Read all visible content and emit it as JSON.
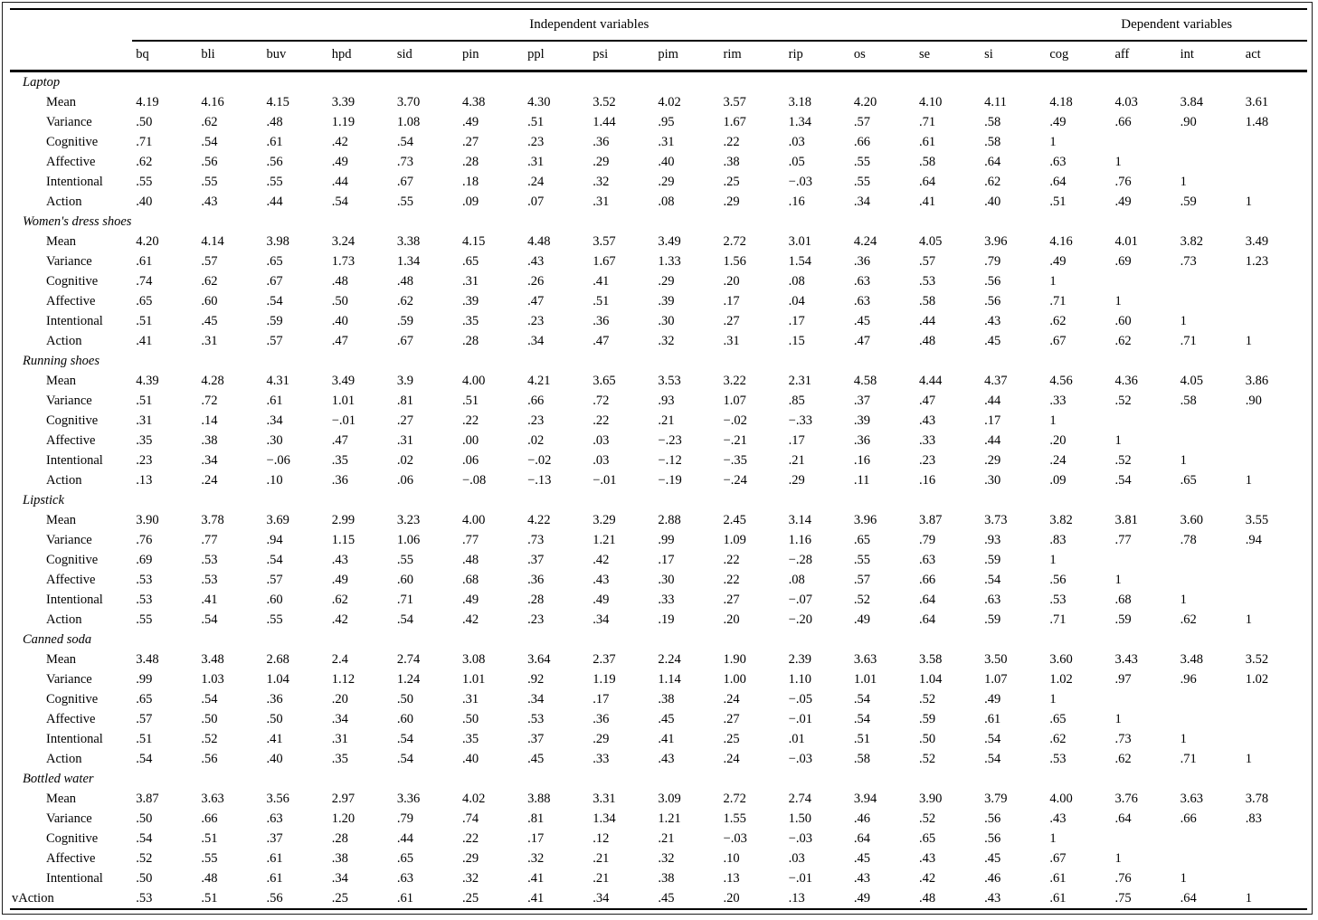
{
  "table": {
    "span_headers": {
      "independent": "Independent variables",
      "dependent": "Dependent variables"
    },
    "columns": [
      "bq",
      "bli",
      "buv",
      "hpd",
      "sid",
      "pin",
      "ppl",
      "psi",
      "pim",
      "rim",
      "rip",
      "os",
      "se",
      "si",
      "cog",
      "aff",
      "int",
      "act"
    ],
    "sections": [
      {
        "label": "Laptop",
        "rows": [
          {
            "label": "Mean",
            "values": [
              "4.19",
              "4.16",
              "4.15",
              "3.39",
              "3.70",
              "4.38",
              "4.30",
              "3.52",
              "4.02",
              "3.57",
              "3.18",
              "4.20",
              "4.10",
              "4.11",
              "4.18",
              "4.03",
              "3.84",
              "3.61"
            ]
          },
          {
            "label": "Variance",
            "values": [
              ".50",
              ".62",
              ".48",
              "1.19",
              "1.08",
              ".49",
              ".51",
              "1.44",
              ".95",
              "1.67",
              "1.34",
              ".57",
              ".71",
              ".58",
              ".49",
              ".66",
              ".90",
              "1.48"
            ]
          },
          {
            "label": "Cognitive",
            "values": [
              ".71",
              ".54",
              ".61",
              ".42",
              ".54",
              ".27",
              ".23",
              ".36",
              ".31",
              ".22",
              ".03",
              ".66",
              ".61",
              ".58",
              "1",
              "",
              "",
              ""
            ]
          },
          {
            "label": "Affective",
            "values": [
              ".62",
              ".56",
              ".56",
              ".49",
              ".73",
              ".28",
              ".31",
              ".29",
              ".40",
              ".38",
              ".05",
              ".55",
              ".58",
              ".64",
              ".63",
              "1",
              "",
              ""
            ]
          },
          {
            "label": "Intentional",
            "values": [
              ".55",
              ".55",
              ".55",
              ".44",
              ".67",
              ".18",
              ".24",
              ".32",
              ".29",
              ".25",
              "−.03",
              ".55",
              ".64",
              ".62",
              ".64",
              ".76",
              "1",
              ""
            ]
          },
          {
            "label": "Action",
            "values": [
              ".40",
              ".43",
              ".44",
              ".54",
              ".55",
              ".09",
              ".07",
              ".31",
              ".08",
              ".29",
              ".16",
              ".34",
              ".41",
              ".40",
              ".51",
              ".49",
              ".59",
              "1"
            ]
          }
        ]
      },
      {
        "label": "Women's dress shoes",
        "rows": [
          {
            "label": "Mean",
            "values": [
              "4.20",
              "4.14",
              "3.98",
              "3.24",
              "3.38",
              "4.15",
              "4.48",
              "3.57",
              "3.49",
              "2.72",
              "3.01",
              "4.24",
              "4.05",
              "3.96",
              "4.16",
              "4.01",
              "3.82",
              "3.49"
            ]
          },
          {
            "label": "Variance",
            "values": [
              ".61",
              ".57",
              ".65",
              "1.73",
              "1.34",
              ".65",
              ".43",
              "1.67",
              "1.33",
              "1.56",
              "1.54",
              ".36",
              ".57",
              ".79",
              ".49",
              ".69",
              ".73",
              "1.23"
            ]
          },
          {
            "label": "Cognitive",
            "values": [
              ".74",
              ".62",
              ".67",
              ".48",
              ".48",
              ".31",
              ".26",
              ".41",
              ".29",
              ".20",
              ".08",
              ".63",
              ".53",
              ".56",
              "1",
              "",
              "",
              ""
            ]
          },
          {
            "label": "Affective",
            "values": [
              ".65",
              ".60",
              ".54",
              ".50",
              ".62",
              ".39",
              ".47",
              ".51",
              ".39",
              ".17",
              ".04",
              ".63",
              ".58",
              ".56",
              ".71",
              "1",
              "",
              ""
            ]
          },
          {
            "label": "Intentional",
            "values": [
              ".51",
              ".45",
              ".59",
              ".40",
              ".59",
              ".35",
              ".23",
              ".36",
              ".30",
              ".27",
              ".17",
              ".45",
              ".44",
              ".43",
              ".62",
              ".60",
              "1",
              ""
            ]
          },
          {
            "label": "Action",
            "values": [
              ".41",
              ".31",
              ".57",
              ".47",
              ".67",
              ".28",
              ".34",
              ".47",
              ".32",
              ".31",
              ".15",
              ".47",
              ".48",
              ".45",
              ".67",
              ".62",
              ".71",
              "1"
            ]
          }
        ]
      },
      {
        "label": "Running shoes",
        "rows": [
          {
            "label": "Mean",
            "values": [
              "4.39",
              "4.28",
              "4.31",
              "3.49",
              "3.9",
              "4.00",
              "4.21",
              "3.65",
              "3.53",
              "3.22",
              "2.31",
              "4.58",
              "4.44",
              "4.37",
              "4.56",
              "4.36",
              "4.05",
              "3.86"
            ]
          },
          {
            "label": "Variance",
            "values": [
              ".51",
              ".72",
              ".61",
              "1.01",
              ".81",
              ".51",
              ".66",
              ".72",
              ".93",
              "1.07",
              ".85",
              ".37",
              ".47",
              ".44",
              ".33",
              ".52",
              ".58",
              ".90"
            ]
          },
          {
            "label": "Cognitive",
            "values": [
              ".31",
              ".14",
              ".34",
              "−.01",
              ".27",
              ".22",
              ".23",
              ".22",
              ".21",
              "−.02",
              "−.33",
              ".39",
              ".43",
              ".17",
              "1",
              "",
              "",
              ""
            ]
          },
          {
            "label": "Affective",
            "values": [
              ".35",
              ".38",
              ".30",
              ".47",
              ".31",
              ".00",
              ".02",
              ".03",
              "−.23",
              "−.21",
              ".17",
              ".36",
              ".33",
              ".44",
              ".20",
              "1",
              "",
              ""
            ]
          },
          {
            "label": "Intentional",
            "values": [
              ".23",
              ".34",
              "−.06",
              ".35",
              ".02",
              ".06",
              "−.02",
              ".03",
              "−.12",
              "−.35",
              ".21",
              ".16",
              ".23",
              ".29",
              ".24",
              ".52",
              "1",
              ""
            ]
          },
          {
            "label": "Action",
            "values": [
              ".13",
              ".24",
              ".10",
              ".36",
              ".06",
              "−.08",
              "−.13",
              "−.01",
              "−.19",
              "−.24",
              ".29",
              ".11",
              ".16",
              ".30",
              ".09",
              ".54",
              ".65",
              "1"
            ]
          }
        ]
      },
      {
        "label": "Lipstick",
        "rows": [
          {
            "label": "Mean",
            "values": [
              "3.90",
              "3.78",
              "3.69",
              "2.99",
              "3.23",
              "4.00",
              "4.22",
              "3.29",
              "2.88",
              "2.45",
              "3.14",
              "3.96",
              "3.87",
              "3.73",
              "3.82",
              "3.81",
              "3.60",
              "3.55"
            ]
          },
          {
            "label": "Variance",
            "values": [
              ".76",
              ".77",
              ".94",
              "1.15",
              "1.06",
              ".77",
              ".73",
              "1.21",
              ".99",
              "1.09",
              "1.16",
              ".65",
              ".79",
              ".93",
              ".83",
              ".77",
              ".78",
              ".94"
            ]
          },
          {
            "label": "Cognitive",
            "values": [
              ".69",
              ".53",
              ".54",
              ".43",
              ".55",
              ".48",
              ".37",
              ".42",
              ".17",
              ".22",
              "−.28",
              ".55",
              ".63",
              ".59",
              "1",
              "",
              "",
              ""
            ]
          },
          {
            "label": "Affective",
            "values": [
              ".53",
              ".53",
              ".57",
              ".49",
              ".60",
              ".68",
              ".36",
              ".43",
              ".30",
              ".22",
              ".08",
              ".57",
              ".66",
              ".54",
              ".56",
              "1",
              "",
              ""
            ]
          },
          {
            "label": "Intentional",
            "values": [
              ".53",
              ".41",
              ".60",
              ".62",
              ".71",
              ".49",
              ".28",
              ".49",
              ".33",
              ".27",
              "−.07",
              ".52",
              ".64",
              ".63",
              ".53",
              ".68",
              "1",
              ""
            ]
          },
          {
            "label": "Action",
            "values": [
              ".55",
              ".54",
              ".55",
              ".42",
              ".54",
              ".42",
              ".23",
              ".34",
              ".19",
              ".20",
              "−.20",
              ".49",
              ".64",
              ".59",
              ".71",
              ".59",
              ".62",
              "1"
            ]
          }
        ]
      },
      {
        "label": "Canned soda",
        "rows": [
          {
            "label": "Mean",
            "values": [
              "3.48",
              "3.48",
              "2.68",
              "2.4",
              "2.74",
              "3.08",
              "3.64",
              "2.37",
              "2.24",
              "1.90",
              "2.39",
              "3.63",
              "3.58",
              "3.50",
              "3.60",
              "3.43",
              "3.48",
              "3.52"
            ]
          },
          {
            "label": "Variance",
            "values": [
              ".99",
              "1.03",
              "1.04",
              "1.12",
              "1.24",
              "1.01",
              ".92",
              "1.19",
              "1.14",
              "1.00",
              "1.10",
              "1.01",
              "1.04",
              "1.07",
              "1.02",
              ".97",
              ".96",
              "1.02"
            ]
          },
          {
            "label": "Cognitive",
            "values": [
              ".65",
              ".54",
              ".36",
              ".20",
              ".50",
              ".31",
              ".34",
              ".17",
              ".38",
              ".24",
              "−.05",
              ".54",
              ".52",
              ".49",
              "1",
              "",
              "",
              ""
            ]
          },
          {
            "label": "Affective",
            "values": [
              ".57",
              ".50",
              ".50",
              ".34",
              ".60",
              ".50",
              ".53",
              ".36",
              ".45",
              ".27",
              "−.01",
              ".54",
              ".59",
              ".61",
              ".65",
              "1",
              "",
              ""
            ]
          },
          {
            "label": "Intentional",
            "values": [
              ".51",
              ".52",
              ".41",
              ".31",
              ".54",
              ".35",
              ".37",
              ".29",
              ".41",
              ".25",
              ".01",
              ".51",
              ".50",
              ".54",
              ".62",
              ".73",
              "1",
              ""
            ]
          },
          {
            "label": "Action",
            "values": [
              ".54",
              ".56",
              ".40",
              ".35",
              ".54",
              ".40",
              ".45",
              ".33",
              ".43",
              ".24",
              "−.03",
              ".58",
              ".52",
              ".54",
              ".53",
              ".62",
              ".71",
              "1"
            ]
          }
        ]
      },
      {
        "label": "Bottled water",
        "rows": [
          {
            "label": "Mean",
            "values": [
              "3.87",
              "3.63",
              "3.56",
              "2.97",
              "3.36",
              "4.02",
              "3.88",
              "3.31",
              "3.09",
              "2.72",
              "2.74",
              "3.94",
              "3.90",
              "3.79",
              "4.00",
              "3.76",
              "3.63",
              "3.78"
            ]
          },
          {
            "label": "Variance",
            "values": [
              ".50",
              ".66",
              ".63",
              "1.20",
              ".79",
              ".74",
              ".81",
              "1.34",
              "1.21",
              "1.55",
              "1.50",
              ".46",
              ".52",
              ".56",
              ".43",
              ".64",
              ".66",
              ".83"
            ]
          },
          {
            "label": "Cognitive",
            "values": [
              ".54",
              ".51",
              ".37",
              ".28",
              ".44",
              ".22",
              ".17",
              ".12",
              ".21",
              "−.03",
              "−.03",
              ".64",
              ".65",
              ".56",
              "1",
              "",
              "",
              ""
            ]
          },
          {
            "label": "Affective",
            "values": [
              ".52",
              ".55",
              ".61",
              ".38",
              ".65",
              ".29",
              ".32",
              ".21",
              ".32",
              ".10",
              ".03",
              ".45",
              ".43",
              ".45",
              ".67",
              "1",
              "",
              ""
            ]
          },
          {
            "label": "Intentional",
            "values": [
              ".50",
              ".48",
              ".61",
              ".34",
              ".63",
              ".32",
              ".41",
              ".21",
              ".38",
              ".13",
              "−.01",
              ".43",
              ".42",
              ".46",
              ".61",
              ".76",
              "1",
              ""
            ]
          },
          {
            "label": "vAction",
            "indent": false,
            "values": [
              ".53",
              ".51",
              ".56",
              ".25",
              ".61",
              ".25",
              ".41",
              ".34",
              ".45",
              ".20",
              ".13",
              ".49",
              ".48",
              ".43",
              ".61",
              ".75",
              ".64",
              "1"
            ]
          }
        ]
      }
    ]
  }
}
